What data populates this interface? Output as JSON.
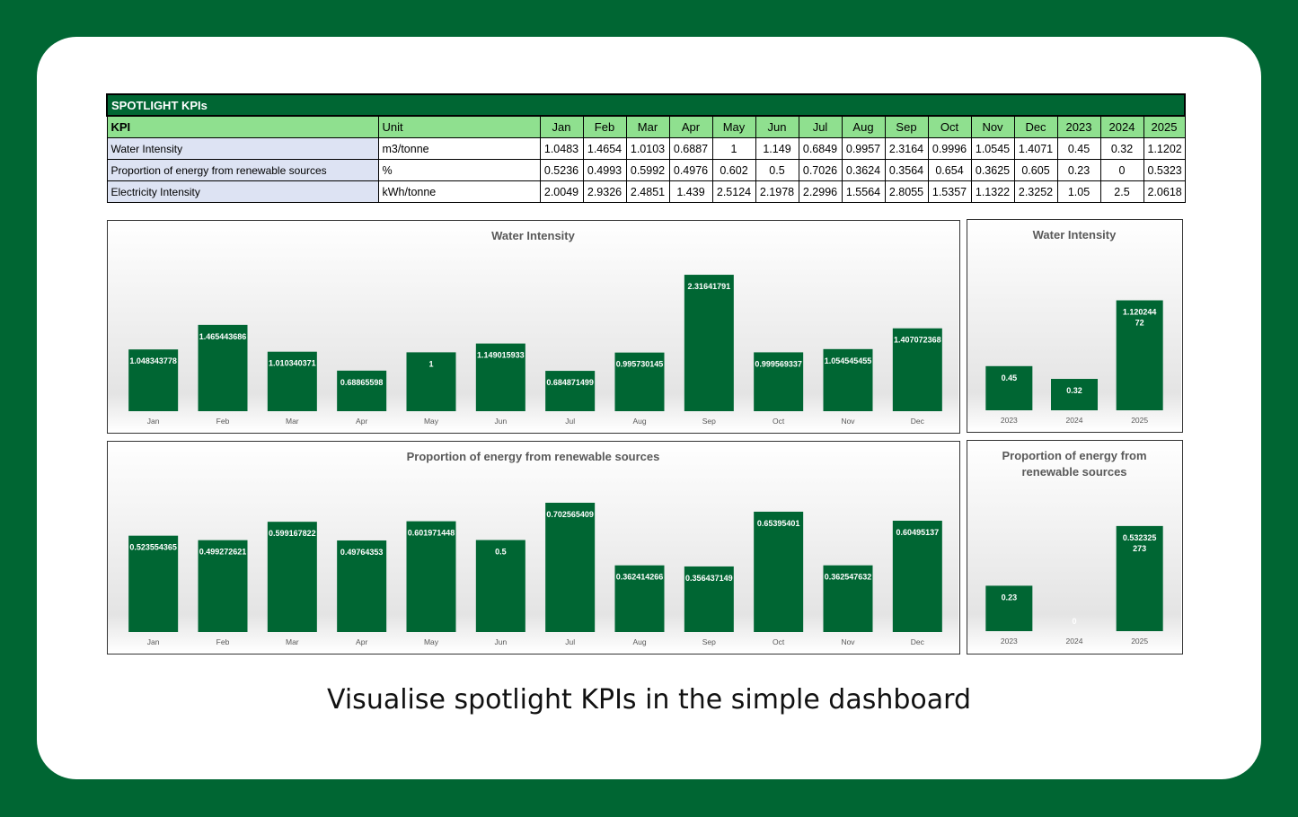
{
  "table": {
    "title": "SPOTLIGHT KPIs",
    "headers": [
      "KPI",
      "Unit",
      "Jan",
      "Feb",
      "Mar",
      "Apr",
      "May",
      "Jun",
      "Jul",
      "Aug",
      "Sep",
      "Oct",
      "Nov",
      "Dec",
      "2023",
      "2024",
      "2025"
    ],
    "rows": [
      {
        "kpi": "Water Intensity",
        "unit": "m3/tonne",
        "values": [
          "1.0483",
          "1.4654",
          "1.0103",
          "0.6887",
          "1",
          "1.149",
          "0.6849",
          "0.9957",
          "2.3164",
          "0.9996",
          "1.0545",
          "1.4071",
          "0.45",
          "0.32",
          "1.1202"
        ]
      },
      {
        "kpi": "Proportion of energy from renewable sources",
        "unit": "%",
        "values": [
          "0.5236",
          "0.4993",
          "0.5992",
          "0.4976",
          "0.602",
          "0.5",
          "0.7026",
          "0.3624",
          "0.3564",
          "0.654",
          "0.3625",
          "0.605",
          "0.23",
          "0",
          "0.5323"
        ]
      },
      {
        "kpi": "Electricity Intensity",
        "unit": "kWh/tonne",
        "values": [
          "2.0049",
          "2.9326",
          "2.4851",
          "1.439",
          "2.5124",
          "2.1978",
          "2.2996",
          "1.5564",
          "2.8055",
          "1.5357",
          "1.1322",
          "2.3252",
          "1.05",
          "2.5",
          "2.0618"
        ]
      }
    ]
  },
  "colors": {
    "brand_green": "#006633",
    "header_green": "#8fe08f",
    "kpi_cell": "#dde3f3",
    "bar": "#006633"
  },
  "chart_data": [
    {
      "type": "bar",
      "title": "Water Intensity",
      "categories": [
        "Jan",
        "Feb",
        "Mar",
        "Apr",
        "May",
        "Jun",
        "Jul",
        "Aug",
        "Sep",
        "Oct",
        "Nov",
        "Dec"
      ],
      "values": [
        1.048343778,
        1.465443686,
        1.010340371,
        0.68865598,
        1,
        1.149015933,
        0.684871499,
        0.995730145,
        2.31641791,
        0.999569337,
        1.054545455,
        1.407072368
      ],
      "labels": [
        "1.048343778",
        "1.465443686",
        "1.010340371",
        "0.68865598",
        "1",
        "1.149015933",
        "0.684871499",
        "0.995730145",
        "2.31641791",
        "0.999569337",
        "1.054545455",
        "1.407072368"
      ],
      "ylim": [
        0,
        2.5
      ],
      "grid": false
    },
    {
      "type": "bar",
      "title": "Water Intensity",
      "categories": [
        "2023",
        "2024",
        "2025"
      ],
      "values": [
        0.45,
        0.32,
        1.12024472
      ],
      "labels": [
        "0.45",
        "0.32",
        "1.120244\n72"
      ],
      "ylim": [
        0,
        1.5
      ],
      "grid": false
    },
    {
      "type": "bar",
      "title": "Proportion of energy from renewable sources",
      "categories": [
        "Jan",
        "Feb",
        "Mar",
        "Apr",
        "May",
        "Jun",
        "Jul",
        "Aug",
        "Sep",
        "Oct",
        "Nov",
        "Dec"
      ],
      "values": [
        0.523554365,
        0.499272621,
        0.599167822,
        0.49764353,
        0.601971448,
        0.5,
        0.702565409,
        0.362414266,
        0.356437149,
        0.65395401,
        0.362547632,
        0.60495137
      ],
      "labels": [
        "0.523554365",
        "0.499272621",
        "0.599167822",
        "0.49764353",
        "0.601971448",
        "0.5",
        "0.702565409",
        "0.362414266",
        "0.356437149",
        "0.65395401",
        "0.362547632",
        "0.60495137"
      ],
      "ylim": [
        0,
        0.8
      ],
      "grid": false
    },
    {
      "type": "bar",
      "title": "Proportion of energy from\nrenewable sources",
      "categories": [
        "2023",
        "2024",
        "2025"
      ],
      "values": [
        0.23,
        0,
        0.532325273
      ],
      "labels": [
        "0.23",
        "0",
        "0.532325\n273"
      ],
      "ylim": [
        0,
        0.7
      ],
      "grid": false
    }
  ],
  "caption": "Visualise spotlight KPIs in the simple dashboard"
}
